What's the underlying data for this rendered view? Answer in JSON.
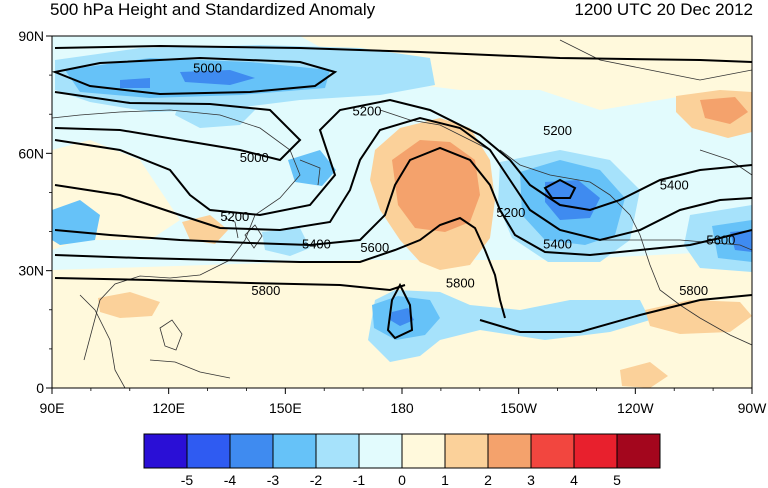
{
  "title": "500 hPa Height and Standardized Anomaly",
  "valid_time": "1200 UTC 20 Dec 2012",
  "lat_labels": [
    "90N",
    "60N",
    "30N",
    "0"
  ],
  "lon_labels": [
    "90E",
    "120E",
    "150E",
    "180",
    "150W",
    "120W",
    "90W"
  ],
  "colorbar": {
    "colors": [
      "#2a0fd6",
      "#2f5bf2",
      "#3f8bf0",
      "#66c2f8",
      "#a6e2fb",
      "#e2fbfd",
      "#fff9dc",
      "#fbd19a",
      "#f4a26c",
      "#f2463f",
      "#e8202d",
      "#a3061d"
    ],
    "labels": [
      "-5",
      "-4",
      "-3",
      "-2",
      "-1",
      "0",
      "1",
      "2",
      "3",
      "4",
      "5"
    ]
  },
  "contour_labels": [
    {
      "text": "5000",
      "lon": 130,
      "lat": 82
    },
    {
      "text": "5000",
      "lon": 142,
      "lat": 59
    },
    {
      "text": "5200",
      "lon": 137,
      "lat": 44
    },
    {
      "text": "5200",
      "lon": 171,
      "lat": 71
    },
    {
      "text": "5200",
      "lon": 220,
      "lat": 66
    },
    {
      "text": "5200",
      "lon": 208,
      "lat": 45
    },
    {
      "text": "5400",
      "lon": 158,
      "lat": 37
    },
    {
      "text": "5400",
      "lon": 250,
      "lat": 52
    },
    {
      "text": "5400",
      "lon": 220,
      "lat": 37
    },
    {
      "text": "5600",
      "lon": 173,
      "lat": 36
    },
    {
      "text": "5600",
      "lon": 262,
      "lat": 38
    },
    {
      "text": "5800",
      "lon": 145,
      "lat": 25
    },
    {
      "text": "5800",
      "lon": 195,
      "lat": 27
    },
    {
      "text": "5800",
      "lon": 255,
      "lat": 25
    }
  ],
  "colors": {
    "background": "#ffffff",
    "contour": "#000000",
    "coast": "#333333"
  }
}
